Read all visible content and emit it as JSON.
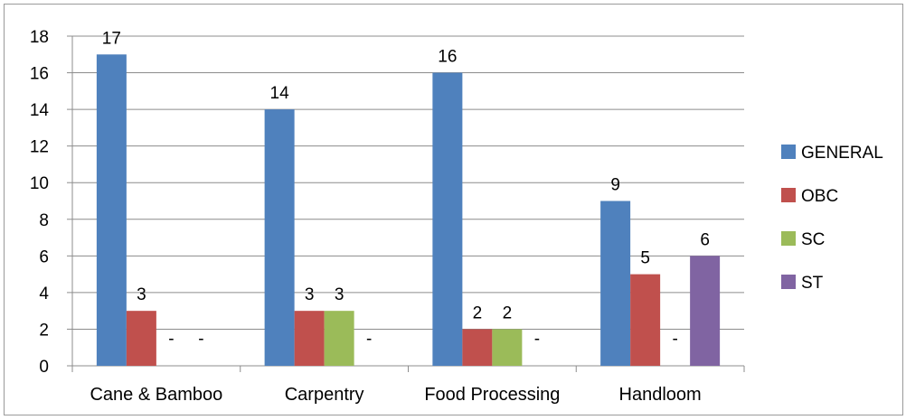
{
  "chart_data": {
    "type": "bar",
    "categories": [
      "Cane & Bamboo",
      "Carpentry",
      "Food Processing",
      "Handloom"
    ],
    "ylim": [
      0,
      18
    ],
    "yticks": [
      0,
      2,
      4,
      6,
      8,
      10,
      12,
      14,
      16,
      18
    ],
    "grid": true,
    "legend_position": "right",
    "series": [
      {
        "name": "GENERAL",
        "color": "#4f81bd",
        "values": [
          17,
          14,
          16,
          9
        ],
        "labels": [
          "17",
          "14",
          "16",
          "9"
        ]
      },
      {
        "name": "OBC",
        "color": "#c0504d",
        "values": [
          3,
          3,
          2,
          5
        ],
        "labels": [
          "3",
          "3",
          "2",
          "5"
        ]
      },
      {
        "name": "SC",
        "color": "#9bbb59",
        "values": [
          0,
          3,
          2,
          0
        ],
        "labels": [
          "-",
          "3",
          "2",
          "-"
        ]
      },
      {
        "name": "ST",
        "color": "#8064a2",
        "values": [
          0,
          0,
          0,
          6
        ],
        "labels": [
          "-",
          "-",
          "-",
          "6"
        ]
      }
    ]
  }
}
